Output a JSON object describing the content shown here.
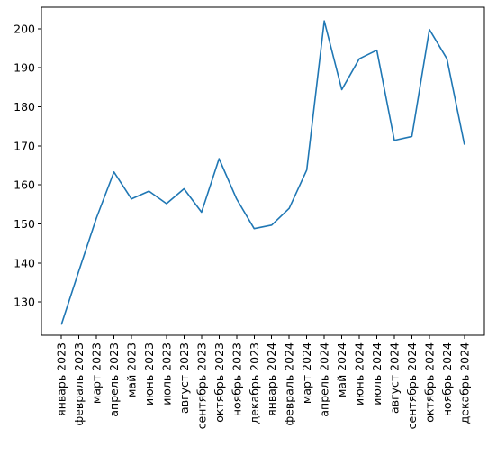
{
  "chart_data": {
    "type": "line",
    "title": "",
    "xlabel": "",
    "ylabel": "",
    "categories": [
      "январь 2023",
      "февраль 2023",
      "март 2023",
      "апрель 2023",
      "май 2023",
      "июнь 2023",
      "июль 2023",
      "август 2023",
      "сентябрь 2023",
      "октябрь 2023",
      "ноябрь 2023",
      "декабрь 2023",
      "январь 2024",
      "февраль 2024",
      "март 2024",
      "апрель 2024",
      "май 2024",
      "июнь 2024",
      "июль 2024",
      "август 2024",
      "сентябрь 2024",
      "октябрь 2024",
      "ноябрь 2024",
      "декабрь 2024"
    ],
    "series": [
      {
        "values": [
          124.2,
          138.0,
          151.5,
          163.3,
          156.4,
          158.4,
          155.2,
          159.0,
          153.0,
          166.7,
          156.4,
          148.8,
          149.7,
          154.0,
          163.8,
          202.0,
          184.4,
          192.3,
          194.5,
          171.4,
          172.4,
          199.8,
          192.3,
          170.3
        ],
        "color": "#1f77b4"
      }
    ],
    "yticks": [
      130,
      140,
      150,
      160,
      170,
      180,
      190,
      200
    ],
    "ylim": [
      121.5,
      205.5
    ],
    "grid": false,
    "legend": "none"
  }
}
